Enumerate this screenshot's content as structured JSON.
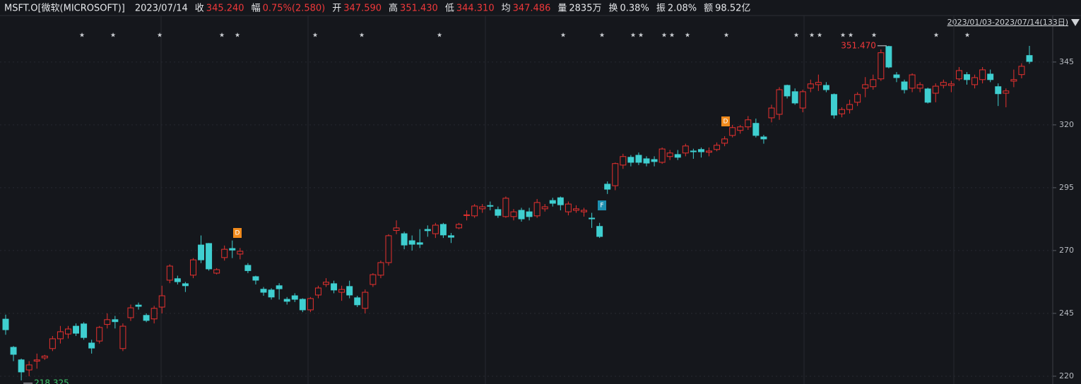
{
  "header": {
    "symbol": "MSFT.O[微软(MICROSOFT)]",
    "date": "2023/07/14",
    "fields": [
      {
        "label": "收",
        "value": "345.240"
      },
      {
        "label": "幅",
        "value": "0.75%(2.580)"
      },
      {
        "label": "开",
        "value": "347.590"
      },
      {
        "label": "高",
        "value": "351.430"
      },
      {
        "label": "低",
        "value": "344.310"
      },
      {
        "label": "均",
        "value": "347.486"
      },
      {
        "label": "量",
        "value": "2835万"
      },
      {
        "label": "换",
        "value": "0.38%"
      },
      {
        "label": "振",
        "value": "2.08%"
      },
      {
        "label": "额",
        "value": "98.52亿"
      }
    ],
    "range": "2023/01/03-2023/07/14(133日)"
  },
  "chart_data": {
    "type": "candlestick",
    "up_color": "#e8312f",
    "down_color": "#3fcfd0",
    "ylim": [
      216.9,
      363.5
    ],
    "yticks": [
      220,
      245,
      270,
      295,
      320,
      345
    ],
    "grid": true,
    "high_label": {
      "value": 351.47,
      "label": "351.470"
    },
    "low_label": {
      "value": 218.325,
      "label": "218.325"
    },
    "markers": [
      {
        "text": "D"
      },
      {
        "text": "D"
      },
      {
        "text": "F"
      }
    ],
    "ohlc": [
      [
        242.7,
        244.5,
        236.5,
        238.5
      ],
      [
        231.5,
        232,
        226,
        228.7
      ],
      [
        226.5,
        227,
        218.325,
        221.7
      ],
      [
        222.5,
        226,
        220,
        224.5
      ],
      [
        226,
        229,
        223,
        226.5
      ],
      [
        227.3,
        228.5,
        226.5,
        228
      ],
      [
        231,
        236,
        230,
        234.9
      ],
      [
        234.9,
        240,
        233,
        237.7
      ],
      [
        236.8,
        240,
        235,
        238.8
      ],
      [
        239.9,
        241,
        236,
        237.1
      ],
      [
        240.8,
        241.5,
        234.5,
        235.4
      ],
      [
        233.2,
        234.5,
        229,
        231.2
      ],
      [
        234,
        240,
        233,
        239.4
      ],
      [
        240.6,
        245,
        239,
        242.5
      ],
      [
        242.5,
        244,
        239,
        241.7
      ],
      [
        231,
        241,
        230,
        239.9
      ],
      [
        243.3,
        248.5,
        242,
        247.2
      ],
      [
        248.3,
        249.3,
        246.5,
        247.8
      ],
      [
        244.2,
        245,
        241.5,
        242.2
      ],
      [
        242.8,
        248,
        241,
        247
      ],
      [
        247.5,
        256,
        245,
        252
      ],
      [
        258.2,
        264.5,
        257,
        263.8
      ],
      [
        258.8,
        260,
        256.5,
        257.6
      ],
      [
        256.8,
        257.5,
        253.5,
        256
      ],
      [
        260.2,
        267,
        259,
        266.3
      ],
      [
        272.2,
        276,
        265,
        266.3
      ],
      [
        272.8,
        273,
        262,
        262.7
      ],
      [
        261,
        263,
        260.5,
        262.4
      ],
      [
        267.2,
        272,
        266,
        270.5
      ],
      [
        270.8,
        274,
        267,
        270.2
      ],
      [
        268.6,
        271,
        266.5,
        269.7
      ],
      [
        264.1,
        265,
        261,
        262
      ],
      [
        259.6,
        260,
        256.5,
        258.2
      ],
      [
        254.6,
        255.5,
        252,
        253.4
      ],
      [
        254.3,
        255,
        250.5,
        251.5
      ],
      [
        256,
        257,
        250.5,
        254.8
      ],
      [
        250.6,
        251.5,
        248.5,
        249.8
      ],
      [
        252,
        253,
        249.5,
        250.6
      ],
      [
        250.6,
        251,
        245.5,
        246.4
      ],
      [
        246.4,
        251.5,
        245.5,
        250.9
      ],
      [
        252.3,
        256,
        251,
        255.1
      ],
      [
        256.5,
        259,
        255.5,
        257.4
      ],
      [
        256.8,
        258,
        253,
        254.3
      ],
      [
        253.4,
        256,
        250,
        254.5
      ],
      [
        255.7,
        258,
        251,
        252.3
      ],
      [
        251.2,
        252,
        247.5,
        248.4
      ],
      [
        247,
        254.5,
        245,
        253.4
      ],
      [
        256.5,
        261,
        255.5,
        260.4
      ],
      [
        260.2,
        266,
        259,
        265.2
      ],
      [
        265.2,
        276.5,
        264,
        275.9
      ],
      [
        278,
        282,
        276.5,
        279
      ],
      [
        276.7,
        277.5,
        270.5,
        272.2
      ],
      [
        273.9,
        276,
        270,
        272.5
      ],
      [
        273.1,
        278.5,
        271,
        272.5
      ],
      [
        278.4,
        280,
        275.5,
        277.9
      ],
      [
        276.7,
        281,
        275,
        280.1
      ],
      [
        280.4,
        281,
        275,
        276.2
      ],
      [
        275.9,
        277,
        273,
        275.3
      ],
      [
        279,
        281,
        278.5,
        280.4
      ],
      [
        284,
        286,
        282,
        284.2
      ],
      [
        283.8,
        288.5,
        283,
        287.7
      ],
      [
        286.6,
        288.5,
        285,
        287.4
      ],
      [
        287.9,
        289.5,
        286,
        287.7
      ],
      [
        286.3,
        287.5,
        283,
        284
      ],
      [
        283.5,
        291.5,
        283,
        290.8
      ],
      [
        283.5,
        286.5,
        282,
        285.4
      ],
      [
        286,
        287,
        281.5,
        282.6
      ],
      [
        285.4,
        287,
        282,
        283.5
      ],
      [
        283.8,
        290.5,
        283,
        289.1
      ],
      [
        286.6,
        288.5,
        285.5,
        287.4
      ],
      [
        289.9,
        291,
        287.5,
        288.8
      ],
      [
        291,
        291.5,
        286,
        288.2
      ],
      [
        285.4,
        289.5,
        284,
        288.5
      ],
      [
        286,
        288,
        285,
        286.6
      ],
      [
        285.4,
        287,
        283.5,
        286
      ],
      [
        282.9,
        285,
        279,
        282.6
      ],
      [
        279.6,
        281,
        275,
        275.6
      ],
      [
        296.4,
        297.5,
        292.5,
        294.4
      ],
      [
        295.8,
        305,
        294,
        304.6
      ],
      [
        304,
        308.5,
        302.5,
        307.4
      ],
      [
        307.1,
        308,
        303.5,
        305.1
      ],
      [
        307.9,
        309,
        304,
        305.1
      ],
      [
        306.5,
        307.5,
        303.5,
        304.8
      ],
      [
        306.2,
        307.5,
        303.5,
        305.4
      ],
      [
        305.1,
        311,
        304.5,
        310.4
      ],
      [
        307.4,
        310,
        306,
        308.8
      ],
      [
        308.2,
        310,
        306,
        307.1
      ],
      [
        308.8,
        312.5,
        307.5,
        311.6
      ],
      [
        309.6,
        310.5,
        306.5,
        309.3
      ],
      [
        310.2,
        311,
        307,
        309.3
      ],
      [
        309.1,
        311,
        307.5,
        309.6
      ],
      [
        310.2,
        313,
        309.5,
        311.9
      ],
      [
        312.7,
        315.5,
        311.5,
        314.4
      ],
      [
        315.8,
        320,
        315,
        318.9
      ],
      [
        317.8,
        320,
        316.5,
        319.2
      ],
      [
        319.2,
        323.5,
        318,
        322
      ],
      [
        320.6,
        322.5,
        315,
        315.8
      ],
      [
        315.2,
        316,
        312.5,
        314.4
      ],
      [
        322.8,
        328,
        321,
        326.7
      ],
      [
        324.2,
        335,
        322,
        334
      ],
      [
        335.7,
        336,
        330.5,
        331.5
      ],
      [
        333.2,
        334.5,
        328,
        328.7
      ],
      [
        326.7,
        334,
        325,
        333.2
      ],
      [
        334.6,
        338,
        333,
        336.3
      ],
      [
        336,
        340,
        333.5,
        336.9
      ],
      [
        335.7,
        337,
        333,
        334
      ],
      [
        332.1,
        332.5,
        322.5,
        323.9
      ],
      [
        324.4,
        327,
        323,
        326.1
      ],
      [
        326.1,
        330,
        324.5,
        328.1
      ],
      [
        329,
        333,
        327.5,
        332.1
      ],
      [
        334.6,
        339,
        331,
        336
      ],
      [
        335.2,
        340,
        334,
        338
      ],
      [
        338.3,
        350,
        337.5,
        348.7
      ],
      [
        351.2,
        351.47,
        342.5,
        343
      ],
      [
        339.9,
        341,
        337,
        338.8
      ],
      [
        337.1,
        338,
        332.5,
        334
      ],
      [
        334.6,
        340.5,
        333,
        339.9
      ],
      [
        334.6,
        337,
        333,
        336
      ],
      [
        334.3,
        334.8,
        328.5,
        329
      ],
      [
        332.6,
        336.5,
        329,
        335.4
      ],
      [
        335.7,
        338,
        334.5,
        336.9
      ],
      [
        335.7,
        337.5,
        333,
        336.3
      ],
      [
        338.3,
        343,
        337.5,
        341.6
      ],
      [
        340,
        341,
        336,
        338
      ],
      [
        336,
        340,
        334.5,
        338.8
      ],
      [
        338,
        343,
        336.5,
        341.9
      ],
      [
        340.2,
        342,
        337,
        338
      ],
      [
        335.2,
        336.5,
        327.5,
        332.4
      ],
      [
        332.6,
        334.5,
        327,
        333.5
      ],
      [
        337.4,
        342,
        335,
        338
      ],
      [
        340,
        344.5,
        338.5,
        343.3
      ],
      [
        347.59,
        351.43,
        344.31,
        345.24
      ]
    ]
  }
}
